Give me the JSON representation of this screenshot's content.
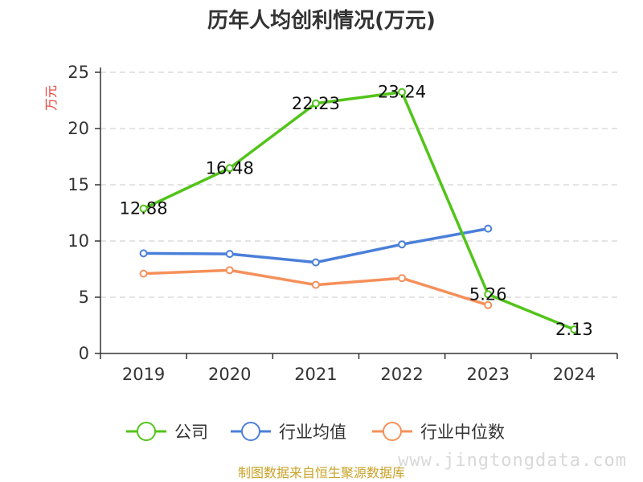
{
  "source_text": "制图数据来自恒生聚源数据库",
  "watermark_text": "www.jingtongdata.com",
  "chart_data": {
    "type": "line",
    "title": "历年人均创利情况(万元)",
    "ylabel": "万元",
    "xlabel": "",
    "categories": [
      "2019",
      "2020",
      "2021",
      "2022",
      "2023",
      "2024"
    ],
    "ylim": [
      0,
      25
    ],
    "yticks": [
      0,
      5,
      10,
      15,
      20,
      25
    ],
    "grid": true,
    "legend_position": "bottom",
    "series": [
      {
        "name": "公司",
        "color": "#52c41a",
        "values": [
          12.88,
          16.48,
          22.23,
          23.24,
          5.26,
          2.13
        ],
        "labels": [
          "12.88",
          "16.48",
          "22.23",
          "23.24",
          "5.26",
          "2.13"
        ]
      },
      {
        "name": "行业均值",
        "color": "#4a7fd9",
        "values": [
          8.9,
          8.85,
          8.1,
          9.7,
          11.1,
          null
        ]
      },
      {
        "name": "行业中位数",
        "color": "#f5905a",
        "values": [
          7.1,
          7.4,
          6.1,
          6.7,
          4.3,
          null
        ]
      }
    ]
  }
}
